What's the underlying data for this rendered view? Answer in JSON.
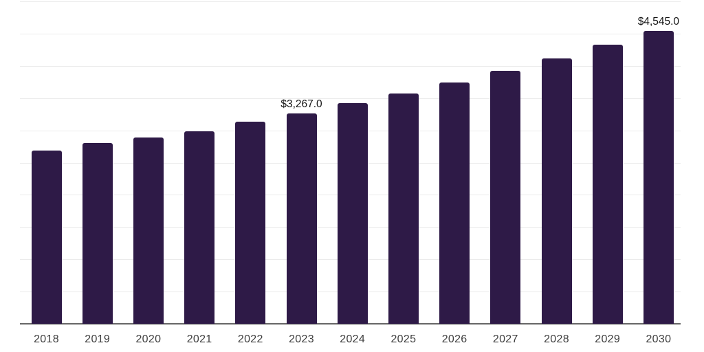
{
  "chart_data": {
    "type": "bar",
    "title": "",
    "xlabel": "",
    "ylabel": "",
    "categories": [
      "2018",
      "2019",
      "2020",
      "2021",
      "2022",
      "2023",
      "2024",
      "2025",
      "2026",
      "2027",
      "2028",
      "2029",
      "2030"
    ],
    "values": [
      2690,
      2805,
      2890,
      2990,
      3130,
      3267,
      3425,
      3570,
      3745,
      3925,
      4110,
      4330,
      4545
    ],
    "annotations": [
      {
        "category": "2023",
        "text": "$3,267.0"
      },
      {
        "category": "2030",
        "text": "$4,545.0"
      }
    ],
    "ylim": [
      0,
      5000
    ],
    "gridline_step": 500,
    "grid": "horizontal",
    "legend": "none",
    "y_tick_labels_visible": false,
    "colors": {
      "bar": "#2E1A47",
      "gridline": "#EBEBEB",
      "axis_line": "#666666",
      "tick_label": "#3D3D3D",
      "value_label": "#141414",
      "background": "#FFFFFF"
    }
  }
}
